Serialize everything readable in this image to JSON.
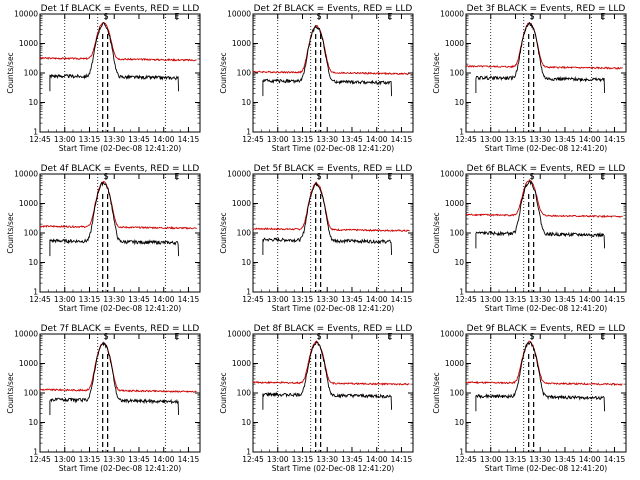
{
  "chart_data": {
    "type": "line",
    "layout": {
      "rows": 3,
      "cols": 3
    },
    "x_ticks": [
      "12:45",
      "13:00",
      "13:15",
      "13:30",
      "13:45",
      "14:00",
      "14:15"
    ],
    "x_range_minutes": [
      0,
      97
    ],
    "y_ticks": [
      "1",
      "10",
      "100",
      "1000",
      "10000"
    ],
    "y_scale": "log",
    "y_range": [
      1,
      10000
    ],
    "xlabel": "Start Time (02-Dec-08 12:41:20)",
    "ylabel": "Counts/sec",
    "legend": [
      "BLACK = Events",
      "RED = LLD"
    ],
    "colors": {
      "events": "#000000",
      "lld": "#cc0000"
    },
    "dotted_lines_minutes": [
      15,
      35,
      76
    ],
    "dashed_lines_minutes": [
      38,
      41
    ],
    "top_marks": [
      {
        "label": "S",
        "minute": 40
      },
      {
        "label": "E",
        "minute": 83
      }
    ],
    "panels": [
      {
        "title": "Det 1f BLACK = Events, RED = LLD",
        "events_base": 80,
        "lld_base": 320,
        "peak": 5000
      },
      {
        "title": "Det 2f BLACK = Events, RED = LLD",
        "events_base": 55,
        "lld_base": 110,
        "peak": 4000
      },
      {
        "title": "Det 3f BLACK = Events, RED = LLD",
        "events_base": 70,
        "lld_base": 170,
        "peak": 5000
      },
      {
        "title": "Det 4f BLACK = Events, RED = LLD",
        "events_base": 55,
        "lld_base": 170,
        "peak": 5500
      },
      {
        "title": "Det 5f BLACK = Events, RED = LLD",
        "events_base": 60,
        "lld_base": 140,
        "peak": 5000
      },
      {
        "title": "Det 6f BLACK = Events, RED = LLD",
        "events_base": 100,
        "lld_base": 420,
        "peak": 6000
      },
      {
        "title": "Det 7f BLACK = Events, RED = LLD",
        "events_base": 60,
        "lld_base": 130,
        "peak": 5000
      },
      {
        "title": "Det 8f BLACK = Events, RED = LLD",
        "events_base": 90,
        "lld_base": 230,
        "peak": 5500
      },
      {
        "title": "Det 9f BLACK = Events, RED = LLD",
        "events_base": 80,
        "lld_base": 230,
        "peak": 5500
      }
    ]
  }
}
